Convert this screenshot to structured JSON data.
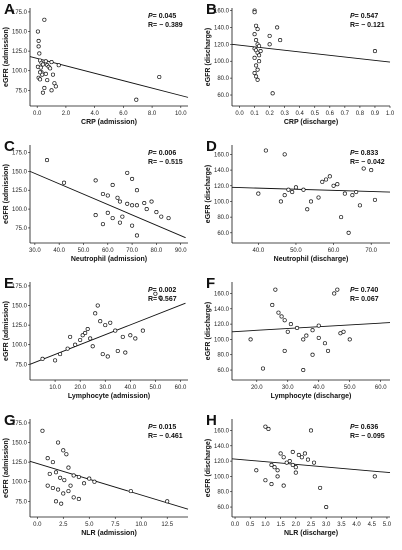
{
  "chart_data": [
    {
      "panel": "A",
      "type": "scatter",
      "xlabel": "CRP (admission)",
      "ylabel": "eGFR (admission)",
      "xlim": [
        -0.5,
        10.5
      ],
      "ylim": [
        55,
        180
      ],
      "xticks": [
        "0.0",
        "2.0",
        "4.0",
        "6.0",
        "8.0",
        "10.0"
      ],
      "xtick_values": [
        0,
        2,
        4,
        6,
        8,
        10
      ],
      "yticks": [
        "50.0",
        "75.0",
        "100.0",
        "125.0",
        "150.0",
        "175.0"
      ],
      "ytick_values": [
        50,
        75,
        100,
        125,
        150,
        175
      ],
      "stats": {
        "p": "= 0.045",
        "r": "R= − 0.389"
      },
      "fit": [
        [
          -0.5,
          118
        ],
        [
          10.5,
          66
        ]
      ],
      "points": [
        [
          0.05,
          150
        ],
        [
          0.1,
          138
        ],
        [
          0.1,
          131
        ],
        [
          0.15,
          122
        ],
        [
          0.2,
          113
        ],
        [
          0.05,
          105
        ],
        [
          0.25,
          104
        ],
        [
          0.3,
          98
        ],
        [
          0.35,
          95
        ],
        [
          0.1,
          91
        ],
        [
          0.2,
          89
        ],
        [
          0.3,
          110
        ],
        [
          0.4,
          108
        ],
        [
          0.5,
          165
        ],
        [
          0.6,
          112
        ],
        [
          0.7,
          107
        ],
        [
          0.8,
          105
        ],
        [
          0.9,
          103
        ],
        [
          1.0,
          111
        ],
        [
          1.1,
          95
        ],
        [
          1.2,
          84
        ],
        [
          1.3,
          80
        ],
        [
          0.5,
          78
        ],
        [
          0.7,
          88
        ],
        [
          0.4,
          72
        ],
        [
          1.5,
          107
        ],
        [
          1.0,
          75
        ],
        [
          0.2,
          98
        ],
        [
          0.6,
          96
        ],
        [
          6.9,
          63
        ],
        [
          8.5,
          92
        ]
      ]
    },
    {
      "panel": "B",
      "type": "scatter",
      "xlabel": "CRP (discharge)",
      "ylabel": "eGFR (discharge)",
      "xlim": [
        -0.05,
        1.0
      ],
      "ylim": [
        47,
        163
      ],
      "xticks": [
        "0.0",
        "0.1",
        "0.2",
        "0.3",
        "0.4",
        "0.5",
        "0.6",
        "0.7",
        "0.8",
        "0.9",
        "1.0"
      ],
      "xtick_values": [
        0,
        0.1,
        0.2,
        0.3,
        0.4,
        0.5,
        0.6,
        0.7,
        0.8,
        0.9,
        1.0
      ],
      "yticks": [
        "60.0",
        "80.0",
        "100.0",
        "120.0",
        "140.0",
        "160.0"
      ],
      "ytick_values": [
        60,
        80,
        100,
        120,
        140,
        160
      ],
      "stats": {
        "p": "= 0.547",
        "r": "R= − 0.121"
      },
      "fit": [
        [
          -0.05,
          120
        ],
        [
          1.0,
          99
        ]
      ],
      "points": [
        [
          0.1,
          160
        ],
        [
          0.1,
          158
        ],
        [
          0.11,
          142
        ],
        [
          0.12,
          138
        ],
        [
          0.1,
          132
        ],
        [
          0.11,
          125
        ],
        [
          0.12,
          120
        ],
        [
          0.1,
          115
        ],
        [
          0.11,
          113
        ],
        [
          0.12,
          110
        ],
        [
          0.13,
          107
        ],
        [
          0.1,
          104
        ],
        [
          0.11,
          95
        ],
        [
          0.12,
          90
        ],
        [
          0.1,
          86
        ],
        [
          0.11,
          82
        ],
        [
          0.12,
          78
        ],
        [
          0.13,
          118
        ],
        [
          0.14,
          112
        ],
        [
          0.2,
          120
        ],
        [
          0.2,
          130
        ],
        [
          0.25,
          140
        ],
        [
          0.27,
          125
        ],
        [
          0.22,
          62
        ],
        [
          0.13,
          100
        ],
        [
          0.9,
          112
        ]
      ]
    },
    {
      "panel": "C",
      "type": "scatter",
      "xlabel": "Neutrophil (admission)",
      "ylabel": "eGFR (admission)",
      "xlim": [
        28,
        93
      ],
      "ylim": [
        55,
        185
      ],
      "xticks": [
        "30.0",
        "40.0",
        "50.0",
        "60.0",
        "70.0",
        "80.0",
        "90.0"
      ],
      "xtick_values": [
        30,
        40,
        50,
        60,
        70,
        80,
        90
      ],
      "yticks": [
        "50.0",
        "75.0",
        "100.0",
        "125.0",
        "150.0",
        "175.0"
      ],
      "ytick_values": [
        50,
        75,
        100,
        125,
        150,
        175
      ],
      "stats": {
        "p": "= 0.006",
        "r": "R= − 0.515"
      },
      "fit": [
        [
          28,
          150
        ],
        [
          92,
          62
        ]
      ],
      "points": [
        [
          35,
          165
        ],
        [
          42,
          135
        ],
        [
          55,
          138
        ],
        [
          62,
          132
        ],
        [
          68,
          148
        ],
        [
          70,
          140
        ],
        [
          72,
          125
        ],
        [
          58,
          120
        ],
        [
          60,
          118
        ],
        [
          64,
          115
        ],
        [
          65,
          110
        ],
        [
          68,
          107
        ],
        [
          70,
          105
        ],
        [
          72,
          105
        ],
        [
          75,
          108
        ],
        [
          78,
          110
        ],
        [
          76,
          100
        ],
        [
          80,
          96
        ],
        [
          82,
          90
        ],
        [
          85,
          88
        ],
        [
          60,
          95
        ],
        [
          62,
          88
        ],
        [
          55,
          92
        ],
        [
          65,
          82
        ],
        [
          70,
          78
        ],
        [
          72,
          65
        ],
        [
          58,
          80
        ],
        [
          66,
          90
        ]
      ]
    },
    {
      "panel": "D",
      "type": "scatter",
      "xlabel": "Neutrophil (discharge)",
      "ylabel": "eGFR (discharge)",
      "xlim": [
        33,
        75
      ],
      "ylim": [
        47,
        172
      ],
      "xticks": [
        "40.0",
        "50.0",
        "60.0",
        "70.0"
      ],
      "xtick_values": [
        40,
        50,
        60,
        70
      ],
      "yticks": [
        "60.0",
        "80.0",
        "100.0",
        "120.0",
        "140.0",
        "160.0"
      ],
      "ytick_values": [
        60,
        80,
        100,
        120,
        140,
        160
      ],
      "stats": {
        "p": "= 0.833",
        "r": "R= − 0.042"
      },
      "fit": [
        [
          33,
          118
        ],
        [
          75,
          112
        ]
      ],
      "points": [
        [
          42,
          165
        ],
        [
          47,
          160
        ],
        [
          40,
          110
        ],
        [
          46,
          100
        ],
        [
          47,
          108
        ],
        [
          48,
          115
        ],
        [
          49,
          112
        ],
        [
          50,
          118
        ],
        [
          52,
          115
        ],
        [
          54,
          100
        ],
        [
          56,
          105
        ],
        [
          57,
          125
        ],
        [
          58,
          128
        ],
        [
          59,
          132
        ],
        [
          60,
          120
        ],
        [
          61,
          122
        ],
        [
          63,
          110
        ],
        [
          65,
          108
        ],
        [
          66,
          112
        ],
        [
          67,
          95
        ],
        [
          62,
          80
        ],
        [
          64,
          60
        ],
        [
          70,
          140
        ],
        [
          68,
          142
        ],
        [
          71,
          102
        ],
        [
          53,
          90
        ]
      ]
    },
    {
      "panel": "E",
      "type": "scatter",
      "xlabel": "Lymphocyte (admission)",
      "ylabel": "eGFR (admission)",
      "xlim": [
        0,
        63
      ],
      "ylim": [
        55,
        180
      ],
      "xticks": [
        "10.0",
        "20.0",
        "30.0",
        "40.0",
        "50.0",
        "60.0"
      ],
      "xtick_values": [
        10,
        20,
        30,
        40,
        50,
        60
      ],
      "yticks": [
        "50.0",
        "75.0",
        "100.0",
        "125.0",
        "150.0",
        "175.0"
      ],
      "ytick_values": [
        50,
        75,
        100,
        125,
        150,
        175
      ],
      "stats": {
        "p": "= 0.002",
        "r": "R= 0.567"
      },
      "fit": [
        [
          0,
          75
        ],
        [
          62,
          153
        ]
      ],
      "points": [
        [
          5,
          82
        ],
        [
          10,
          80
        ],
        [
          12,
          88
        ],
        [
          15,
          95
        ],
        [
          16,
          110
        ],
        [
          18,
          100
        ],
        [
          20,
          106
        ],
        [
          21,
          112
        ],
        [
          22,
          115
        ],
        [
          23,
          120
        ],
        [
          24,
          108
        ],
        [
          25,
          98
        ],
        [
          26,
          140
        ],
        [
          27,
          150
        ],
        [
          28,
          130
        ],
        [
          30,
          125
        ],
        [
          32,
          128
        ],
        [
          34,
          118
        ],
        [
          35,
          92
        ],
        [
          37,
          110
        ],
        [
          38,
          90
        ],
        [
          40,
          112
        ],
        [
          42,
          108
        ],
        [
          45,
          118
        ],
        [
          50,
          165
        ],
        [
          52,
          160
        ],
        [
          31,
          85
        ],
        [
          29,
          88
        ]
      ]
    },
    {
      "panel": "F",
      "type": "scatter",
      "xlabel": "Lymphocyte (discharge)",
      "ylabel": "eGFR (discharge)",
      "xlim": [
        12,
        63
      ],
      "ylim": [
        47,
        175
      ],
      "xticks": [
        "20.0",
        "30.0",
        "40.0",
        "50.0",
        "60.0"
      ],
      "xtick_values": [
        20,
        30,
        40,
        50,
        60
      ],
      "yticks": [
        "60.0",
        "80.0",
        "100.0",
        "120.0",
        "140.0",
        "160.0"
      ],
      "ytick_values": [
        60,
        80,
        100,
        120,
        140,
        160
      ],
      "stats": {
        "p": "= 0.740",
        "r": "R= 0.067"
      },
      "fit": [
        [
          12,
          110
        ],
        [
          63,
          122
        ]
      ],
      "points": [
        [
          18,
          100
        ],
        [
          25,
          145
        ],
        [
          26,
          165
        ],
        [
          27,
          135
        ],
        [
          28,
          130
        ],
        [
          29,
          125
        ],
        [
          30,
          110
        ],
        [
          31,
          120
        ],
        [
          33,
          115
        ],
        [
          35,
          100
        ],
        [
          36,
          105
        ],
        [
          38,
          112
        ],
        [
          40,
          118
        ],
        [
          42,
          95
        ],
        [
          43,
          85
        ],
        [
          45,
          160
        ],
        [
          46,
          165
        ],
        [
          48,
          110
        ],
        [
          50,
          100
        ],
        [
          38,
          80
        ],
        [
          35,
          60
        ],
        [
          29,
          85
        ],
        [
          22,
          62
        ],
        [
          47,
          108
        ],
        [
          40,
          102
        ]
      ]
    },
    {
      "panel": "G",
      "type": "scatter",
      "xlabel": "NLR (admission)",
      "ylabel": "eGFR (admission)",
      "xlim": [
        -0.7,
        14.5
      ],
      "ylim": [
        55,
        180
      ],
      "xticks": [
        "0.0",
        "2.5",
        "5.0",
        "7.5",
        "10.0",
        "12.5"
      ],
      "xtick_values": [
        0,
        2.5,
        5,
        7.5,
        10,
        12.5
      ],
      "yticks": [
        "50.0",
        "75.0",
        "100.0",
        "125.0",
        "150.0",
        "175.0"
      ],
      "ytick_values": [
        50,
        75,
        100,
        125,
        150,
        175
      ],
      "stats": {
        "p": "= 0.015",
        "r": "R= − 0.461"
      },
      "fit": [
        [
          -0.7,
          126
        ],
        [
          14.5,
          65
        ]
      ],
      "points": [
        [
          0.5,
          165
        ],
        [
          1.0,
          130
        ],
        [
          1.5,
          125
        ],
        [
          2.0,
          150
        ],
        [
          2.5,
          140
        ],
        [
          2.8,
          135
        ],
        [
          3.0,
          118
        ],
        [
          1.2,
          110
        ],
        [
          1.8,
          112
        ],
        [
          2.2,
          105
        ],
        [
          2.6,
          102
        ],
        [
          3.5,
          108
        ],
        [
          4.0,
          106
        ],
        [
          4.5,
          98
        ],
        [
          5.0,
          104
        ],
        [
          1.0,
          95
        ],
        [
          1.5,
          92
        ],
        [
          2.0,
          90
        ],
        [
          2.5,
          85
        ],
        [
          3.0,
          88
        ],
        [
          3.5,
          80
        ],
        [
          4.0,
          78
        ],
        [
          1.8,
          75
        ],
        [
          2.3,
          72
        ],
        [
          5.5,
          100
        ],
        [
          9.0,
          88
        ],
        [
          12.5,
          75
        ],
        [
          3.2,
          95
        ]
      ]
    },
    {
      "panel": "H",
      "type": "scatter",
      "xlabel": "NLR (discharge)",
      "ylabel": "eGFR (discharge)",
      "xlim": [
        -0.1,
        5.1
      ],
      "ylim": [
        47,
        175
      ],
      "xticks": [
        "0.0",
        "0.5",
        "1.0",
        "1.5",
        "2.0",
        "2.5",
        "3.0",
        "3.5",
        "4.0",
        "4.5",
        "5.0"
      ],
      "xtick_values": [
        0,
        0.5,
        1,
        1.5,
        2,
        2.5,
        3,
        3.5,
        4,
        4.5,
        5
      ],
      "yticks": [
        "60.0",
        "80.0",
        "100.0",
        "120.0",
        "140.0",
        "160.0"
      ],
      "ytick_values": [
        60,
        80,
        100,
        120,
        140,
        160
      ],
      "stats": {
        "p": "= 0.636",
        "r": "R= − 0.095"
      },
      "fit": [
        [
          -0.1,
          123
        ],
        [
          5.1,
          105
        ]
      ],
      "points": [
        [
          1.0,
          165
        ],
        [
          1.1,
          162
        ],
        [
          1.2,
          115
        ],
        [
          1.3,
          112
        ],
        [
          1.4,
          108
        ],
        [
          1.5,
          130
        ],
        [
          1.6,
          125
        ],
        [
          1.7,
          118
        ],
        [
          1.8,
          120
        ],
        [
          1.9,
          115
        ],
        [
          2.0,
          112
        ],
        [
          2.1,
          128
        ],
        [
          2.2,
          125
        ],
        [
          2.3,
          130
        ],
        [
          2.4,
          122
        ],
        [
          2.5,
          160
        ],
        [
          2.6,
          118
        ],
        [
          1.0,
          95
        ],
        [
          1.2,
          90
        ],
        [
          1.4,
          100
        ],
        [
          1.6,
          88
        ],
        [
          2.0,
          105
        ],
        [
          2.8,
          85
        ],
        [
          3.0,
          60
        ],
        [
          4.6,
          100
        ],
        [
          1.9,
          132
        ],
        [
          0.7,
          108
        ]
      ]
    }
  ]
}
